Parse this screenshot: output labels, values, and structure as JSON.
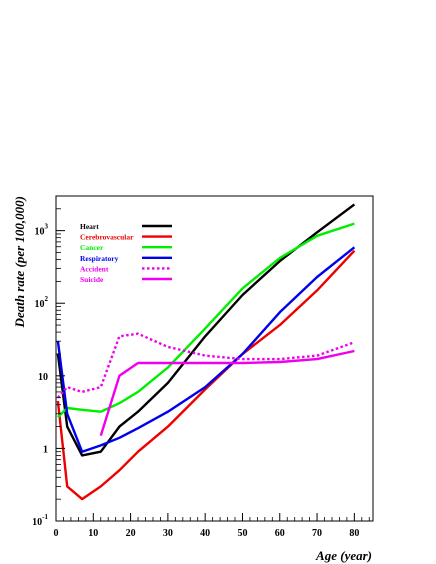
{
  "chart_data": {
    "type": "line",
    "title": "",
    "xlabel": "Age (year)",
    "ylabel": "Death rate (per 100,000)",
    "xlim": [
      0,
      85
    ],
    "ylim": [
      0.1,
      3000
    ],
    "yscale": "log",
    "grid": false,
    "legend_position": "top-left",
    "x_ticks": [
      {
        "value": 0,
        "label": "0"
      },
      {
        "value": 10,
        "label": "10"
      },
      {
        "value": 20,
        "label": "20"
      },
      {
        "value": 30,
        "label": "30"
      },
      {
        "value": 40,
        "label": "40"
      },
      {
        "value": 50,
        "label": "50"
      },
      {
        "value": 60,
        "label": "60"
      },
      {
        "value": 70,
        "label": "70"
      },
      {
        "value": 80,
        "label": "80"
      }
    ],
    "y_ticks": [
      {
        "value": 0.1,
        "base": "10",
        "exp": "-1"
      },
      {
        "value": 1,
        "base": "1",
        "exp": ""
      },
      {
        "value": 10,
        "base": "10",
        "exp": ""
      },
      {
        "value": 100,
        "base": "10",
        "exp": "2"
      },
      {
        "value": 1000,
        "base": "10",
        "exp": "3"
      }
    ],
    "series": [
      {
        "name": "Heart",
        "color": "#000000",
        "dash": "solid",
        "points": [
          [
            0.5,
            20
          ],
          [
            3,
            2
          ],
          [
            7,
            0.8
          ],
          [
            12,
            0.9
          ],
          [
            17,
            2
          ],
          [
            22,
            3.2
          ],
          [
            30,
            8
          ],
          [
            40,
            35
          ],
          [
            50,
            130
          ],
          [
            60,
            380
          ],
          [
            70,
            950
          ],
          [
            80,
            2300
          ]
        ]
      },
      {
        "name": "Cerebrovascular",
        "color": "#ee0000",
        "dash": "solid",
        "points": [
          [
            0.5,
            4.5
          ],
          [
            3,
            0.3
          ],
          [
            7,
            0.2
          ],
          [
            12,
            0.3
          ],
          [
            17,
            0.5
          ],
          [
            22,
            0.9
          ],
          [
            30,
            2
          ],
          [
            40,
            6.5
          ],
          [
            50,
            20
          ],
          [
            60,
            50
          ],
          [
            70,
            150
          ],
          [
            80,
            530
          ]
        ]
      },
      {
        "name": "Cancer",
        "color": "#00ee00",
        "dash": "solid",
        "points": [
          [
            0.5,
            2.7
          ],
          [
            3,
            3.6
          ],
          [
            7,
            3.4
          ],
          [
            12,
            3.2
          ],
          [
            17,
            4.2
          ],
          [
            22,
            6
          ],
          [
            30,
            13
          ],
          [
            40,
            45
          ],
          [
            50,
            160
          ],
          [
            60,
            420
          ],
          [
            70,
            850
          ],
          [
            80,
            1250
          ]
        ]
      },
      {
        "name": "Respiratory",
        "color": "#0000ee",
        "dash": "solid",
        "points": [
          [
            0.5,
            30
          ],
          [
            3,
            3
          ],
          [
            7,
            0.9
          ],
          [
            12,
            1.1
          ],
          [
            17,
            1.4
          ],
          [
            22,
            1.9
          ],
          [
            30,
            3.2
          ],
          [
            40,
            7
          ],
          [
            50,
            20
          ],
          [
            60,
            75
          ],
          [
            70,
            230
          ],
          [
            80,
            590
          ]
        ]
      },
      {
        "name": "Accident",
        "color": "#ee00ee",
        "dash": "dotted",
        "points": [
          [
            0.5,
            5
          ],
          [
            3,
            7
          ],
          [
            7,
            6
          ],
          [
            12,
            7
          ],
          [
            17,
            35
          ],
          [
            22,
            38
          ],
          [
            30,
            25
          ],
          [
            40,
            19
          ],
          [
            50,
            17
          ],
          [
            60,
            17
          ],
          [
            70,
            19
          ],
          [
            80,
            29
          ]
        ]
      },
      {
        "name": "Suicide",
        "color": "#ee00ee",
        "dash": "solid",
        "points": [
          [
            12,
            1.5
          ],
          [
            17,
            10
          ],
          [
            22,
            15
          ],
          [
            30,
            15
          ],
          [
            40,
            15
          ],
          [
            50,
            15
          ],
          [
            60,
            15.5
          ],
          [
            70,
            17
          ],
          [
            80,
            22
          ]
        ]
      }
    ]
  }
}
